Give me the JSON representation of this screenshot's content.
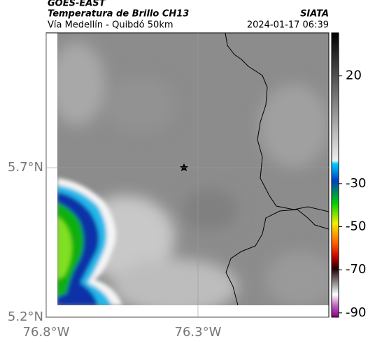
{
  "header": {
    "satellite": "GOES-EAST",
    "title": "Temperatura de Brillo CH13",
    "source": "SIATA",
    "subtitle": "Vía Medellín - Quibdó 50km",
    "datetime": "2024-01-17 06:39"
  },
  "map": {
    "xlim": [
      -76.8,
      -75.869
    ],
    "ylim": [
      5.2,
      6.151
    ],
    "xticks": [
      {
        "value": -76.8,
        "label": "76.8°W"
      },
      {
        "value": -76.3,
        "label": "76.3°W"
      }
    ],
    "yticks": [
      {
        "value": 5.2,
        "label": "5.2°N"
      },
      {
        "value": 5.7,
        "label": "5.7°N"
      }
    ],
    "grid": true
  },
  "colorbar": {
    "lim": [
      -92,
      40
    ],
    "ticks": [
      20,
      -30,
      -50,
      -70,
      -90
    ]
  }
}
